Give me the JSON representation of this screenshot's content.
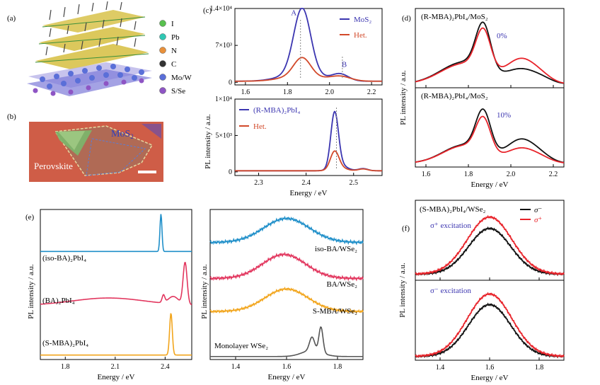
{
  "colors": {
    "blue": "#3b35b0",
    "orange": "#d2492a",
    "black": "#111111",
    "red": "#e8232a",
    "cyan": "#1f8fc9",
    "pink": "#e2365e",
    "gold": "#f2a51c",
    "gray": "#555555"
  },
  "panel_a": {
    "label": "(a)",
    "legend": [
      {
        "name": "I",
        "color": "#58c04e",
        "icon": "sphere-icon"
      },
      {
        "name": "Pb",
        "color": "#2fc7b3",
        "icon": "sphere-icon"
      },
      {
        "name": "N",
        "color": "#e8903a",
        "icon": "sphere-icon"
      },
      {
        "name": "C",
        "color": "#333333",
        "icon": "sphere-icon"
      },
      {
        "name": "Mo/W",
        "color": "#5a6fd8",
        "icon": "sphere-icon"
      },
      {
        "name": "S/Se",
        "color": "#8e55c4",
        "icon": "sphere-icon"
      }
    ]
  },
  "panel_b": {
    "label": "(b)",
    "mos2": "MoS",
    "mos2_sub": "2",
    "perovskite": "Perovskite"
  },
  "chart_data": [
    {
      "id": "c-top",
      "panel": "(c)",
      "type": "line",
      "xlim": [
        1.55,
        2.25
      ],
      "ylim": [
        -500,
        14000
      ],
      "xticks": [
        1.6,
        1.8,
        2.0,
        2.2
      ],
      "xtick_labels": [
        "1.6",
        "1.8",
        "2.0",
        "2.2"
      ],
      "yticks": [
        0,
        7000,
        14000
      ],
      "ytick_labels": [
        "0",
        "7×10³",
        "1.4×10⁴"
      ],
      "annotations": [
        {
          "text": "A",
          "x": 1.83,
          "y": 12700
        },
        {
          "text": "B",
          "x": 2.07,
          "y": 2900
        }
      ],
      "series": [
        {
          "name": "MoS₂",
          "color": "#3b35b0",
          "peaks": [
            [
              1.87,
              0.04,
              12400
            ],
            [
              1.86,
              0.09,
              1500
            ],
            [
              2.05,
              0.04,
              1300
            ]
          ],
          "baseline": 200
        },
        {
          "name": "Het.",
          "color": "#d2492a",
          "peaks": [
            [
              1.87,
              0.04,
              3500
            ],
            [
              1.86,
              0.09,
              1000
            ],
            [
              2.05,
              0.05,
              900
            ]
          ],
          "baseline": 200
        }
      ]
    },
    {
      "id": "c-bot",
      "type": "line",
      "xlim": [
        2.25,
        2.56
      ],
      "ylim": [
        -500,
        10000
      ],
      "xticks": [
        2.3,
        2.4,
        2.5
      ],
      "xtick_labels": [
        "2.3",
        "2.4",
        "2.5"
      ],
      "yticks": [
        0,
        5000,
        10000
      ],
      "ytick_labels": [
        "0",
        "5×10³",
        "1×10⁴"
      ],
      "xlabel": "Energy / eV",
      "series": [
        {
          "name": "(R-MBA)₂PbI₄",
          "color": "#3b35b0",
          "peaks": [
            [
              2.46,
              0.008,
              7500
            ],
            [
              2.47,
              0.015,
              800
            ],
            [
              2.52,
              0.01,
              300
            ]
          ],
          "baseline": 150
        },
        {
          "name": "Het.",
          "color": "#d2492a",
          "peaks": [
            [
              2.46,
              0.009,
              2400
            ],
            [
              2.47,
              0.015,
              400
            ],
            [
              2.52,
              0.01,
              250
            ]
          ],
          "baseline": 150
        }
      ]
    },
    {
      "id": "d-top",
      "panel": "(d)",
      "type": "line",
      "xlim": [
        1.55,
        2.25
      ],
      "ylim": [
        0,
        1.08
      ],
      "title": "(R-MBA)₂PbI₄/MoS₂",
      "note": "0%",
      "series": [
        {
          "name": "black",
          "color": "#111111",
          "peaks": [
            [
              1.87,
              0.035,
              0.62
            ],
            [
              1.78,
              0.11,
              0.3
            ],
            [
              2.05,
              0.07,
              0.19
            ],
            [
              2.15,
              0.05,
              0.05
            ]
          ],
          "baseline": 0.05
        },
        {
          "name": "red",
          "color": "#e8232a",
          "peaks": [
            [
              1.87,
              0.035,
              0.55
            ],
            [
              1.78,
              0.11,
              0.28
            ],
            [
              2.05,
              0.07,
              0.33
            ],
            [
              2.15,
              0.05,
              0.06
            ]
          ],
          "baseline": 0.05
        }
      ]
    },
    {
      "id": "d-bot",
      "type": "line",
      "xlim": [
        1.55,
        2.25
      ],
      "ylim": [
        0,
        1.08
      ],
      "xticks": [
        1.6,
        1.8,
        2.0,
        2.2
      ],
      "xtick_labels": [
        "1.6",
        "1.8",
        "2.0",
        "2.2"
      ],
      "title": "(R-MBA)₂PbI₄/MoS₂",
      "note": "10%",
      "xlabel": "Energy / eV",
      "series": [
        {
          "name": "black",
          "color": "#111111",
          "peaks": [
            [
              1.87,
              0.035,
              0.56
            ],
            [
              1.78,
              0.1,
              0.25
            ],
            [
              2.05,
              0.07,
              0.32
            ],
            [
              2.15,
              0.05,
              0.05
            ]
          ],
          "baseline": 0.05
        },
        {
          "name": "red",
          "color": "#e8232a",
          "peaks": [
            [
              1.87,
              0.035,
              0.47
            ],
            [
              1.78,
              0.1,
              0.24
            ],
            [
              2.05,
              0.07,
              0.2
            ],
            [
              2.15,
              0.05,
              0.04
            ]
          ],
          "baseline": 0.05
        }
      ]
    },
    {
      "id": "e-left",
      "panel": "(e)",
      "type": "line",
      "xlim": [
        1.65,
        2.56
      ],
      "ylim": [
        0,
        1
      ],
      "xticks": [
        1.8,
        2.1,
        2.4
      ],
      "xtick_labels": [
        "1.8",
        "2.1",
        "2.4"
      ],
      "xlabel": "Energy / eV",
      "series": [
        {
          "name": "(iso-BA)₂PbI₄",
          "color": "#1f8fc9",
          "offset": 0.72,
          "peaks": [
            [
              2.375,
              0.006,
              0.25
            ]
          ],
          "baseline": 0
        },
        {
          "name": "(BA)₂PbI₄",
          "color": "#e2365e",
          "offset": 0.36,
          "peaks": [
            [
              2.06,
              0.22,
              0.05
            ],
            [
              2.39,
              0.008,
              0.05
            ],
            [
              2.52,
              0.012,
              0.28
            ],
            [
              2.45,
              0.03,
              0.05
            ]
          ],
          "baseline": 0
        },
        {
          "name": "(S-MBA)₂PbI₄",
          "color": "#f2a51c",
          "offset": 0.03,
          "peaks": [
            [
              2.435,
              0.008,
              0.28
            ]
          ],
          "baseline": 0
        }
      ]
    },
    {
      "id": "e-right",
      "type": "line",
      "xlim": [
        1.3,
        1.9
      ],
      "ylim": [
        0,
        1
      ],
      "xticks": [
        1.4,
        1.6,
        1.8
      ],
      "xtick_labels": [
        "1.4",
        "1.6",
        "1.8"
      ],
      "xlabel": "Energy / eV",
      "series": [
        {
          "name": "iso-BA/WSe₂",
          "color": "#1f8fc9",
          "offset": 0.78,
          "peaks": [
            [
              1.6,
              0.09,
              0.16
            ]
          ],
          "baseline": 0,
          "noise": 0.006
        },
        {
          "name": "BA/WSe₂",
          "color": "#e2365e",
          "offset": 0.54,
          "peaks": [
            [
              1.59,
              0.085,
              0.16
            ]
          ],
          "baseline": 0,
          "noise": 0.006
        },
        {
          "name": "S-MBA/WSe₂",
          "color": "#f2a51c",
          "offset": 0.32,
          "peaks": [
            [
              1.6,
              0.085,
              0.15
            ]
          ],
          "baseline": 0,
          "noise": 0.005
        },
        {
          "name": "Monolayer WSe₂",
          "color": "#555555",
          "offset": 0.02,
          "peaks": [
            [
              1.735,
              0.008,
              0.17
            ],
            [
              1.7,
              0.01,
              0.09
            ],
            [
              1.7,
              0.04,
              0.04
            ]
          ],
          "baseline": 0
        }
      ]
    },
    {
      "id": "f-top",
      "panel": "(f)",
      "type": "line",
      "xlim": [
        1.3,
        1.9
      ],
      "ylim": [
        0,
        1.05
      ],
      "title": "(S-MBA)₂PbI₄/WSe₂",
      "note": "σ⁺ excitation",
      "legend": [
        {
          "name": "σ⁻",
          "color": "#111111"
        },
        {
          "name": "σ⁺",
          "color": "#e8232a"
        }
      ],
      "series": [
        {
          "name": "σ⁻",
          "color": "#111111",
          "peaks": [
            [
              1.6,
              0.085,
              0.6
            ]
          ],
          "baseline": 0.08,
          "noise": 0.008
        },
        {
          "name": "σ⁺",
          "color": "#e8232a",
          "peaks": [
            [
              1.6,
              0.09,
              0.75
            ]
          ],
          "baseline": 0.08,
          "noise": 0.008
        }
      ]
    },
    {
      "id": "f-bot",
      "type": "line",
      "xlim": [
        1.3,
        1.9
      ],
      "ylim": [
        0,
        1.05
      ],
      "xticks": [
        1.4,
        1.6,
        1.8
      ],
      "xtick_labels": [
        "1.4",
        "1.6",
        "1.8"
      ],
      "note": "σ⁻ excitation",
      "xlabel": "Energy / eV",
      "series": [
        {
          "name": "σ⁻",
          "color": "#111111",
          "peaks": [
            [
              1.6,
              0.085,
              0.68
            ]
          ],
          "baseline": 0.05,
          "noise": 0.008
        },
        {
          "name": "σ⁺",
          "color": "#e8232a",
          "peaks": [
            [
              1.6,
              0.09,
              0.82
            ]
          ],
          "baseline": 0.05,
          "noise": 0.008
        }
      ]
    }
  ],
  "labels": {
    "pl_intensity": "PL intensity / a.u.",
    "energy": "Energy / eV",
    "c_legend_top": [
      "MoS₂",
      "Het."
    ],
    "c_legend_bot": [
      "(R-MBA)₂PbI₄",
      "Het."
    ],
    "e_left_labels": [
      "(iso-BA)₂PbI₄",
      "(BA)₂PbI₄",
      "(S-MBA)₂PbI₄"
    ],
    "e_right_labels": [
      "iso-BA/WSe₂",
      "BA/WSe₂",
      "S-MBA/WSe₂",
      "Monolayer WSe₂"
    ]
  }
}
